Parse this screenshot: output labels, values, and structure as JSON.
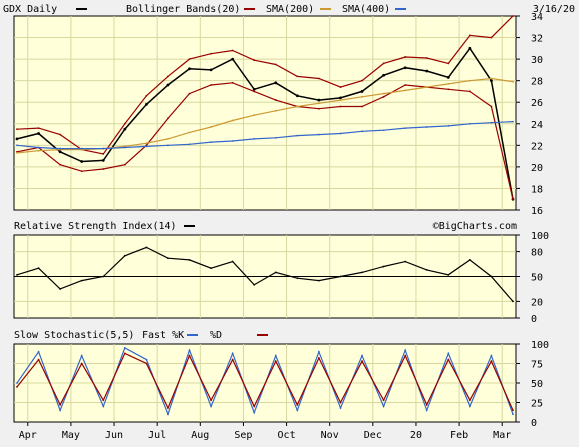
{
  "colors": {
    "panel_bg": "#ffffd9",
    "grid": "#d8d8a0",
    "price": "#000000",
    "bollinger": "#990000",
    "sma200": "#cc9933",
    "sma400": "#3366cc",
    "stoch_k": "#3366cc",
    "stoch_d": "#990000"
  },
  "header": {
    "symbol": "GDX Daily",
    "bollinger_label": "Bollinger Bands(20)",
    "sma200_label": "SMA(200)",
    "sma400_label": "SMA(400)",
    "date": "3/16/20"
  },
  "watermark": "©BigCharts.com",
  "chart_data": [
    {
      "type": "line",
      "title": "GDX Daily",
      "ylim": [
        16,
        34
      ],
      "y_ticks": [
        16,
        18,
        20,
        22,
        24,
        26,
        28,
        30,
        32,
        34
      ],
      "x": [
        "Apr",
        "Apr",
        "May",
        "May",
        "Jun",
        "Jun",
        "Jul",
        "Jul",
        "Aug",
        "Aug",
        "Sep",
        "Sep",
        "Oct",
        "Oct",
        "Nov",
        "Nov",
        "Dec",
        "Dec",
        "20",
        "20",
        "Feb",
        "Feb",
        "Mar",
        "Mar"
      ],
      "series": [
        {
          "name": "GDX Daily",
          "values": [
            22.6,
            23.1,
            21.4,
            20.5,
            20.6,
            23.5,
            25.8,
            27.6,
            29.1,
            29.0,
            30.0,
            27.2,
            27.8,
            26.6,
            26.2,
            26.4,
            27.0,
            28.5,
            29.2,
            28.9,
            28.3,
            31.0,
            28.0,
            17.0
          ]
        },
        {
          "name": "Bollinger Bands(20) Upper",
          "values": [
            23.5,
            23.6,
            23.0,
            21.6,
            21.2,
            24.0,
            26.6,
            28.4,
            30.0,
            30.5,
            30.8,
            29.9,
            29.5,
            28.4,
            28.2,
            27.4,
            28.0,
            29.6,
            30.2,
            30.1,
            29.6,
            32.2,
            32.0,
            34.0
          ]
        },
        {
          "name": "Bollinger Bands(20) Lower",
          "values": [
            21.4,
            21.8,
            20.2,
            19.6,
            19.8,
            20.2,
            22.0,
            24.5,
            26.8,
            27.6,
            27.8,
            27.0,
            26.2,
            25.6,
            25.4,
            25.6,
            25.6,
            26.5,
            27.6,
            27.4,
            27.2,
            27.0,
            25.6,
            17.0
          ]
        },
        {
          "name": "SMA(200)",
          "values": [
            21.3,
            21.5,
            21.6,
            21.6,
            21.7,
            21.9,
            22.2,
            22.6,
            23.2,
            23.7,
            24.3,
            24.8,
            25.2,
            25.6,
            25.9,
            26.2,
            26.5,
            26.8,
            27.1,
            27.4,
            27.7,
            28.0,
            28.2,
            27.9
          ]
        },
        {
          "name": "SMA(400)",
          "values": [
            22.0,
            21.8,
            21.7,
            21.7,
            21.7,
            21.8,
            21.9,
            22.0,
            22.1,
            22.3,
            22.4,
            22.6,
            22.7,
            22.9,
            23.0,
            23.1,
            23.3,
            23.4,
            23.6,
            23.7,
            23.8,
            24.0,
            24.1,
            24.2
          ]
        }
      ]
    },
    {
      "type": "line",
      "title": "Relative Strength Index(14)",
      "ylim": [
        0,
        100
      ],
      "y_ticks": [
        0,
        20,
        50,
        80,
        100
      ],
      "x": [
        "Apr",
        "Apr",
        "May",
        "May",
        "Jun",
        "Jun",
        "Jul",
        "Jul",
        "Aug",
        "Aug",
        "Sep",
        "Sep",
        "Oct",
        "Oct",
        "Nov",
        "Nov",
        "Dec",
        "Dec",
        "20",
        "20",
        "Feb",
        "Feb",
        "Mar",
        "Mar"
      ],
      "series": [
        {
          "name": "Relative Strength Index(14)",
          "values": [
            52,
            60,
            35,
            45,
            50,
            75,
            85,
            72,
            70,
            60,
            68,
            40,
            55,
            48,
            45,
            50,
            55,
            62,
            68,
            58,
            52,
            70,
            50,
            20
          ]
        }
      ]
    },
    {
      "type": "line",
      "title": "Slow Stochastic(5,5)",
      "ylim": [
        0,
        100
      ],
      "y_ticks": [
        0,
        25,
        50,
        75,
        100
      ],
      "x": [
        "Apr",
        "Apr",
        "May",
        "May",
        "Jun",
        "Jun",
        "Jul",
        "Jul",
        "Aug",
        "Aug",
        "Sep",
        "Sep",
        "Oct",
        "Oct",
        "Nov",
        "Nov",
        "Dec",
        "Dec",
        "20",
        "20",
        "Feb",
        "Feb",
        "Mar",
        "Mar"
      ],
      "series": [
        {
          "name": "Fast %K",
          "values": [
            50,
            90,
            15,
            85,
            20,
            95,
            80,
            10,
            92,
            20,
            88,
            12,
            85,
            15,
            90,
            18,
            85,
            20,
            92,
            15,
            88,
            20,
            85,
            10
          ]
        },
        {
          "name": "%D",
          "values": [
            45,
            80,
            22,
            75,
            28,
            88,
            75,
            18,
            85,
            28,
            80,
            20,
            78,
            22,
            82,
            25,
            78,
            28,
            85,
            22,
            80,
            28,
            78,
            15
          ]
        }
      ]
    }
  ],
  "x_axis_labels": [
    "Apr",
    "May",
    "Jun",
    "Jul",
    "Aug",
    "Sep",
    "Oct",
    "Nov",
    "Dec",
    "20",
    "Feb",
    "Mar"
  ]
}
